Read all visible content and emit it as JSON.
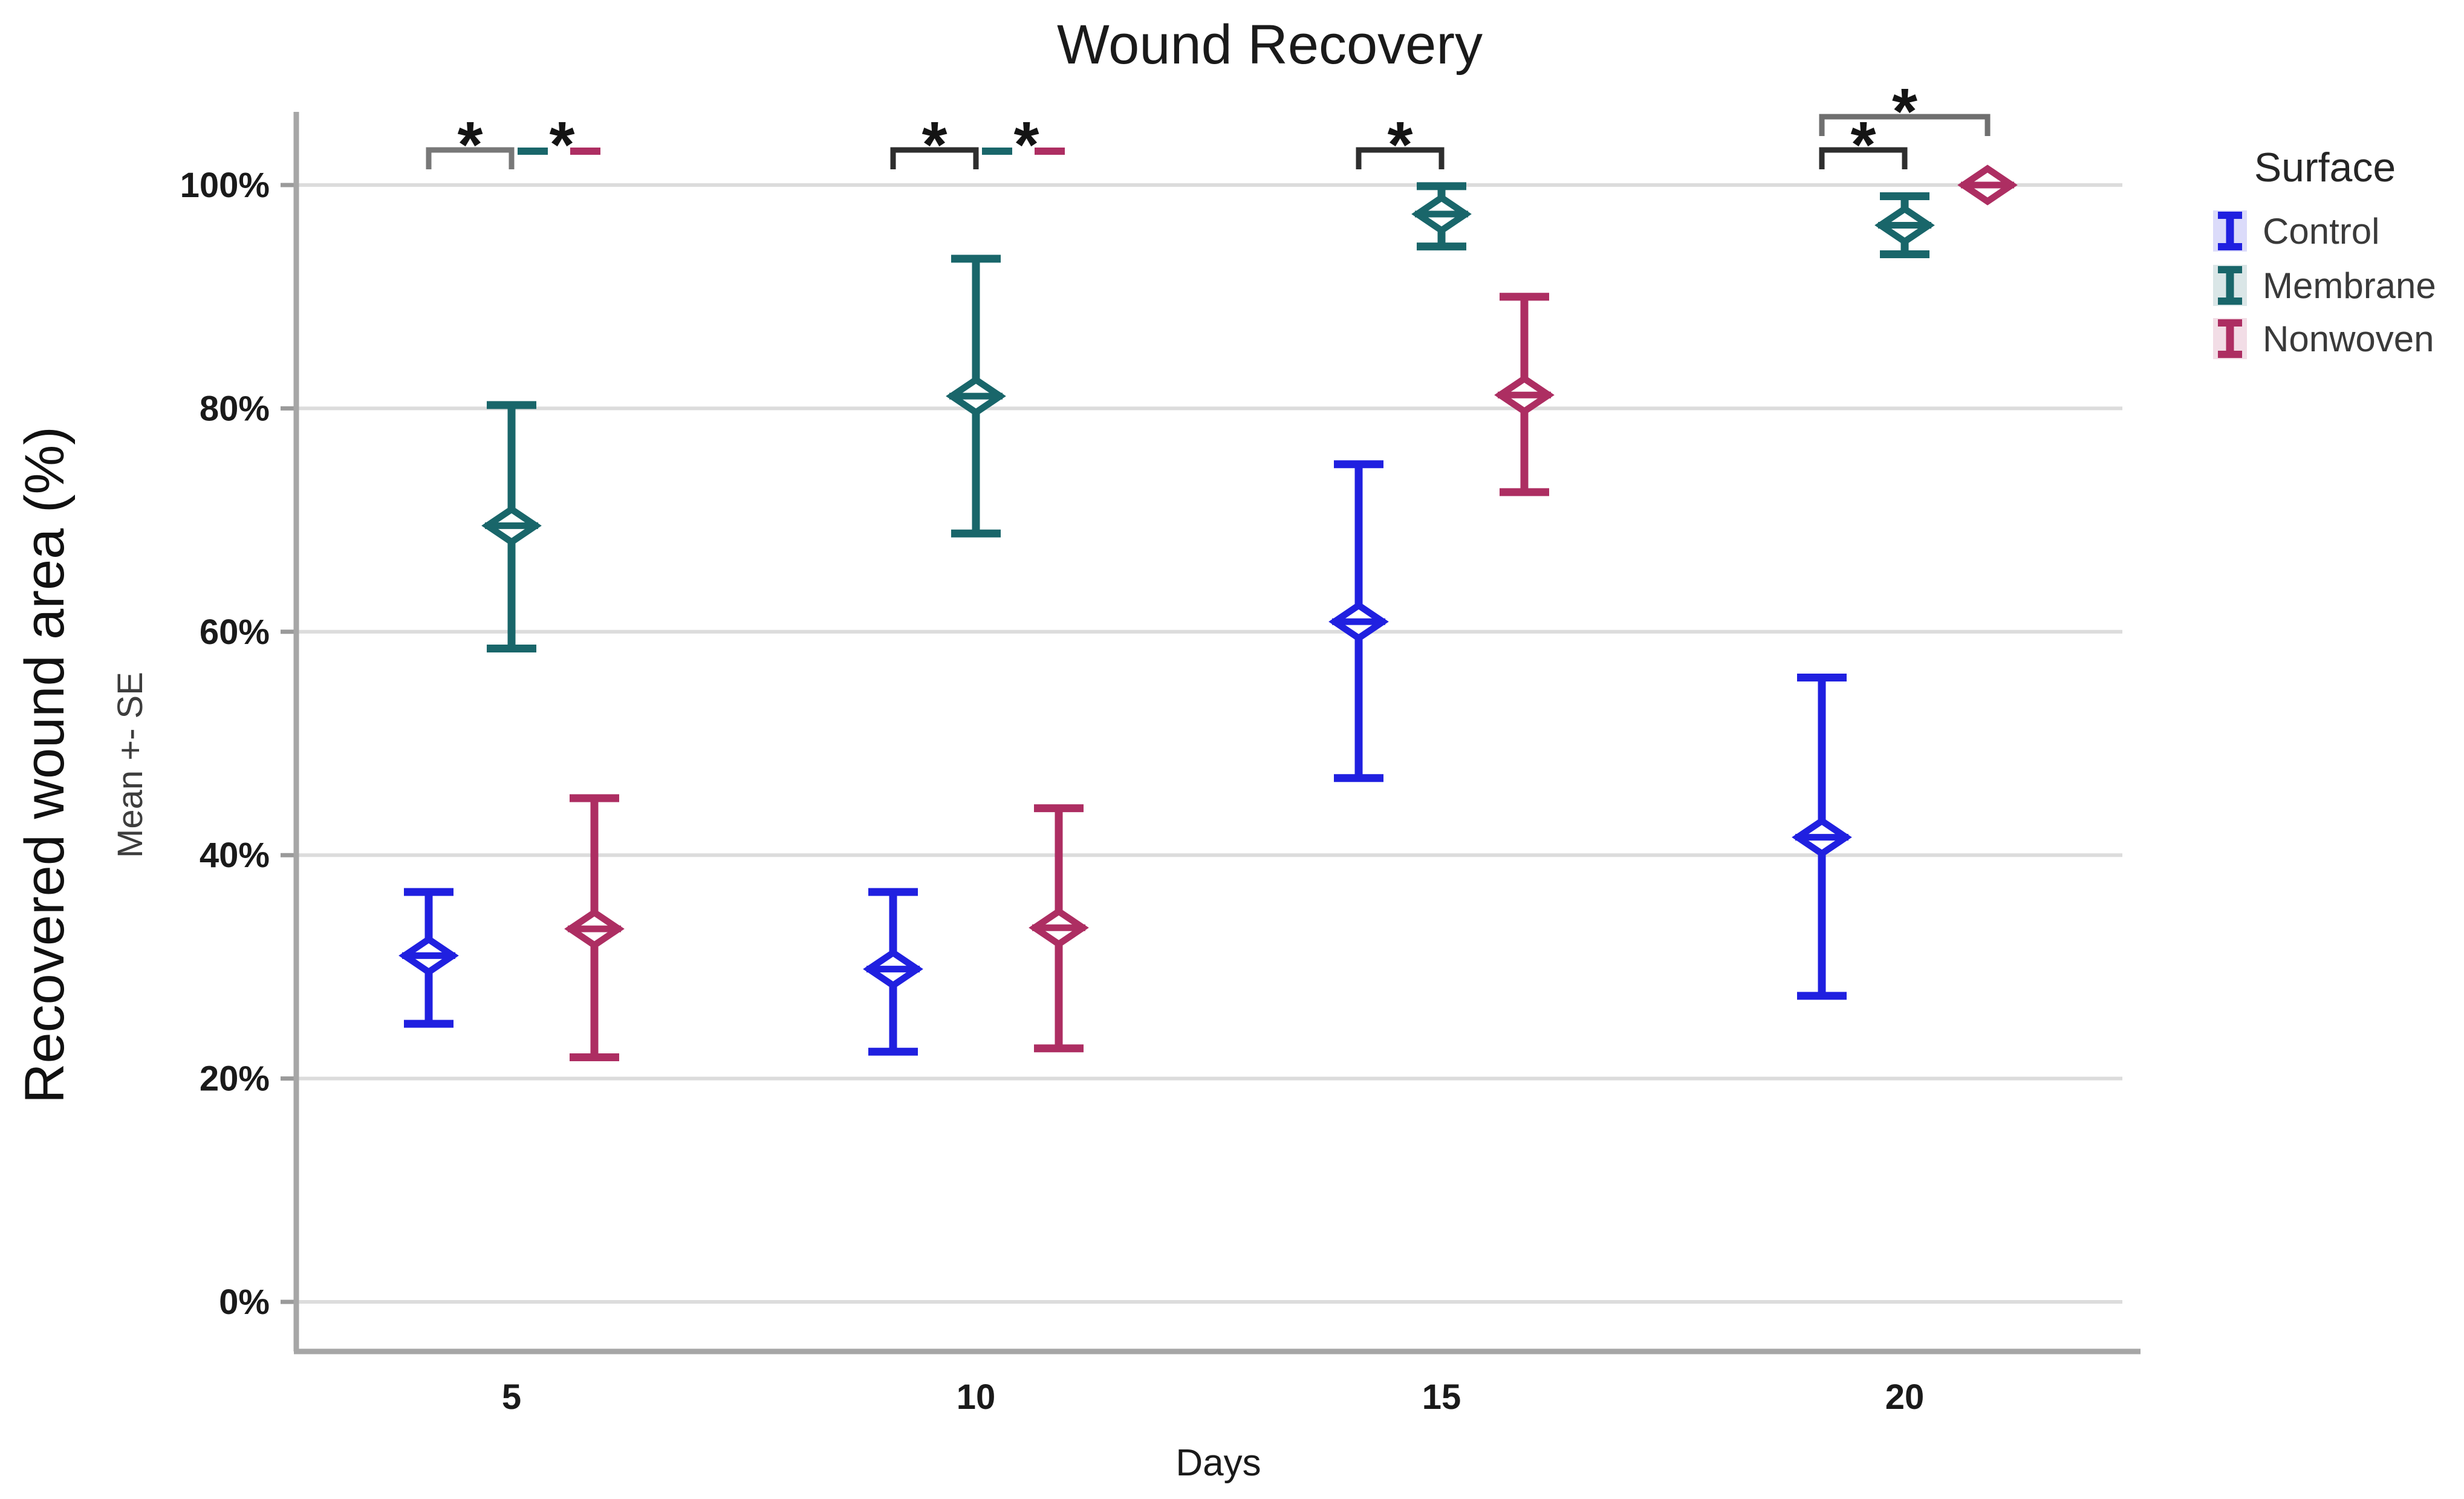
{
  "chart_data": {
    "type": "errorbar",
    "title": "Wound Recovery",
    "xlabel": "Days",
    "ylabel": "Recovered wound area (%)",
    "ylabel_sub": "Mean +- SE",
    "categories": [
      "5",
      "10",
      "15",
      "20"
    ],
    "y_ticks": [
      "0%",
      "20%",
      "40%",
      "60%",
      "80%",
      "100%"
    ],
    "ylim": [
      0,
      100
    ],
    "grid": true,
    "legend": {
      "title": "Surface",
      "position": "right"
    },
    "series": [
      {
        "name": "Control",
        "color": "#2020E0",
        "points": [
          {
            "day": "5",
            "mean": 31.0,
            "lo": 24.9,
            "hi": 36.7
          },
          {
            "day": "10",
            "mean": 29.8,
            "lo": 22.4,
            "hi": 36.7
          },
          {
            "day": "15",
            "mean": 60.9,
            "lo": 46.9,
            "hi": 75.0
          },
          {
            "day": "20",
            "mean": 41.6,
            "lo": 27.4,
            "hi": 55.9
          }
        ]
      },
      {
        "name": "Membrane",
        "color": "#19666A",
        "points": [
          {
            "day": "5",
            "mean": 69.5,
            "lo": 58.5,
            "hi": 80.3
          },
          {
            "day": "10",
            "mean": 81.1,
            "lo": 68.8,
            "hi": 93.4
          },
          {
            "day": "15",
            "mean": 97.4,
            "lo": 94.5,
            "hi": 99.9
          },
          {
            "day": "20",
            "mean": 96.4,
            "lo": 93.8,
            "hi": 99.0
          }
        ]
      },
      {
        "name": "Nonwoven",
        "color": "#AD2E62",
        "points": [
          {
            "day": "5",
            "mean": 33.4,
            "lo": 21.9,
            "hi": 45.1
          },
          {
            "day": "10",
            "mean": 33.5,
            "lo": 22.7,
            "hi": 44.2
          },
          {
            "day": "15",
            "mean": 81.2,
            "lo": 72.5,
            "hi": 90.0
          },
          {
            "day": "20",
            "mean": 100.0,
            "lo": 100.0,
            "hi": 100.0
          }
        ]
      }
    ],
    "annotations": [
      {
        "day": "5",
        "type": "bracket",
        "between": [
          "Control",
          "Membrane"
        ],
        "label": "*",
        "color": "#787878",
        "level": 1
      },
      {
        "day": "5",
        "type": "color-dashes",
        "between": [
          "Membrane",
          "Nonwoven"
        ],
        "label": "*",
        "level": 1
      },
      {
        "day": "10",
        "type": "bracket",
        "between": [
          "Control",
          "Membrane"
        ],
        "label": "*",
        "color": "#2e2e2e",
        "level": 1
      },
      {
        "day": "10",
        "type": "color-dashes",
        "between": [
          "Membrane",
          "Nonwoven"
        ],
        "label": "*",
        "level": 1
      },
      {
        "day": "15",
        "type": "bracket",
        "between": [
          "Control",
          "Membrane"
        ],
        "label": "*",
        "color": "#2e2e2e",
        "level": 1
      },
      {
        "day": "20",
        "type": "bracket",
        "between": [
          "Control",
          "Membrane"
        ],
        "label": "*",
        "color": "#2e2e2e",
        "level": 1
      },
      {
        "day": "20",
        "type": "bracket",
        "between": [
          "Control",
          "Nonwoven"
        ],
        "label": "*",
        "color": "#6f6f6f",
        "level": 2
      }
    ],
    "colors": {
      "gridline": "#DCDCDC",
      "axis": "#A6A6A6",
      "tick": "#9A9A9A",
      "text": "#1A1A1A"
    }
  }
}
